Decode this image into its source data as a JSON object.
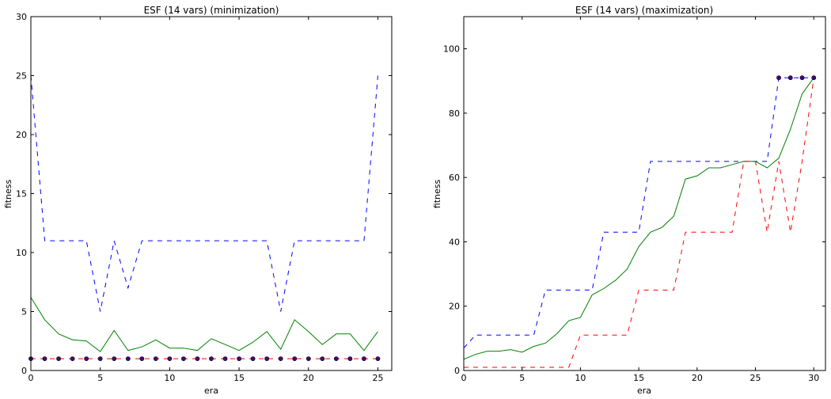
{
  "chart_data": [
    {
      "type": "line",
      "title": "ESF (14 vars) (minimization)",
      "xlabel": "era",
      "ylabel": "fitness",
      "xlim": [
        0,
        26
      ],
      "ylim": [
        0,
        30
      ],
      "xticks": [
        0,
        5,
        10,
        15,
        20,
        25
      ],
      "yticks": [
        0,
        5,
        10,
        15,
        20,
        25,
        30
      ],
      "grid": false,
      "x": [
        0,
        1,
        2,
        3,
        4,
        5,
        6,
        7,
        8,
        9,
        10,
        11,
        12,
        13,
        14,
        15,
        16,
        17,
        18,
        19,
        20,
        21,
        22,
        23,
        24,
        25
      ],
      "series": [
        {
          "style": "dashed",
          "color": "#0000ff",
          "values": [
            25,
            11,
            11,
            11,
            11,
            5,
            11,
            7,
            11,
            11,
            11,
            11,
            11,
            11,
            11,
            11,
            11,
            11,
            5,
            11,
            11,
            11,
            11,
            11,
            11,
            25
          ]
        },
        {
          "style": "solid",
          "color": "#008000",
          "values": [
            6.2,
            4.3,
            3.1,
            2.6,
            2.5,
            1.6,
            3.4,
            1.7,
            2.0,
            2.6,
            1.9,
            1.9,
            1.7,
            2.7,
            2.2,
            1.7,
            2.4,
            3.3,
            1.8,
            4.3,
            3.3,
            2.2,
            3.1,
            3.1,
            1.7,
            3.3
          ]
        },
        {
          "style": "dashed",
          "color": "#ff0000",
          "values": [
            1,
            1,
            1,
            1,
            1,
            1,
            1,
            1,
            1,
            1,
            1,
            1,
            1,
            1,
            1,
            1,
            1,
            1,
            1,
            1,
            1,
            1,
            1,
            1,
            1,
            1
          ]
        },
        {
          "style": "markers",
          "color": "#4b0082",
          "values": [
            1,
            1,
            1,
            1,
            1,
            1,
            1,
            1,
            1,
            1,
            1,
            1,
            1,
            1,
            1,
            1,
            1,
            1,
            1,
            1,
            1,
            1,
            1,
            1,
            1,
            1
          ]
        }
      ]
    },
    {
      "type": "line",
      "title": "ESF (14 vars) (maximization)",
      "xlabel": "era",
      "ylabel": "fitness",
      "xlim": [
        0,
        31
      ],
      "ylim": [
        0,
        110
      ],
      "xticks": [
        0,
        5,
        10,
        15,
        20,
        25,
        30
      ],
      "yticks": [
        0,
        20,
        40,
        60,
        80,
        100
      ],
      "grid": false,
      "x": [
        0,
        1,
        2,
        3,
        4,
        5,
        6,
        7,
        8,
        9,
        10,
        11,
        12,
        13,
        14,
        15,
        16,
        17,
        18,
        19,
        20,
        21,
        22,
        23,
        24,
        25,
        26,
        27,
        28,
        29,
        30
      ],
      "series": [
        {
          "style": "dashed",
          "color": "#0000ff",
          "values": [
            7,
            11,
            11,
            11,
            11,
            11,
            11,
            25,
            25,
            25,
            25,
            25,
            43,
            43,
            43,
            43,
            65,
            65,
            65,
            65,
            65,
            65,
            65,
            65,
            65,
            65,
            65,
            91,
            91,
            91,
            91
          ]
        },
        {
          "style": "solid",
          "color": "#008000",
          "values": [
            3.5,
            5,
            6,
            6,
            6.5,
            5.7,
            7.5,
            8.5,
            11.5,
            15.5,
            16.5,
            23.5,
            25.5,
            28,
            31.5,
            38.5,
            43,
            44.5,
            48,
            59.5,
            60.5,
            63,
            63,
            64,
            65,
            65,
            63,
            66,
            75,
            86,
            91
          ]
        },
        {
          "style": "dashed",
          "color": "#ff0000",
          "values": [
            1,
            1,
            1,
            1,
            1,
            1,
            1,
            1,
            1,
            1,
            11,
            11,
            11,
            11,
            11,
            25,
            25,
            25,
            25,
            43,
            43,
            43,
            43,
            43,
            65,
            65,
            43,
            65,
            43,
            65,
            91
          ]
        },
        {
          "style": "markers",
          "color": "#4b0082",
          "x": [
            27,
            28,
            29,
            30
          ],
          "values": [
            91,
            91,
            91,
            91
          ]
        }
      ]
    }
  ]
}
